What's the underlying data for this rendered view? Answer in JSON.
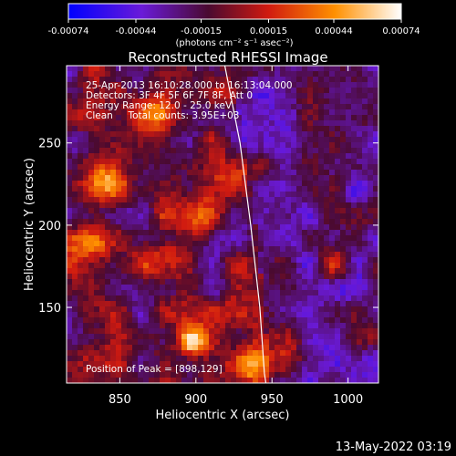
{
  "chart_data": {
    "type": "heatmap",
    "title": "Reconstructed RHESSI Image",
    "xlabel": "Heliocentric X (arcsec)",
    "ylabel": "Heliocentric Y (arcsec)",
    "xlim": [
      815,
      1020
    ],
    "ylim": [
      104,
      297
    ],
    "x_ticks": [
      850,
      900,
      950,
      1000
    ],
    "y_ticks": [
      150,
      200,
      250
    ],
    "colorbar": {
      "range": [
        -0.00074,
        0.00074
      ],
      "tick_values": [
        -0.00074,
        -0.00044,
        -0.00015,
        0.00015,
        0.00044,
        0.00074
      ],
      "tick_labels": [
        "-0.00074",
        "-0.00044",
        "-0.00015",
        "0.00015",
        "0.00044",
        "0.00074"
      ],
      "unit_label": "(photons cm⁻² s⁻¹ asec⁻²)",
      "colors": [
        "#0000ff",
        "#7a18d8",
        "#6a0f3a",
        "#d21e10",
        "#ff8a00",
        "#ffffff"
      ]
    },
    "info_lines": [
      "25-Apr-2013 16:10:28.000 to 16:13:04.000",
      "Detectors: 3F 4F 5F 6F 7F 8F, Att 0",
      "Energy Range: 12.0 - 25.0 keV",
      "Clean     Total counts: 3.95E+03"
    ],
    "peak_label": "Position of Peak = [898,129]",
    "peak": {
      "x": 898,
      "y": 129
    },
    "limb": [
      [
        919,
        297
      ],
      [
        929,
        250
      ],
      [
        936,
        200
      ],
      [
        942,
        150
      ],
      [
        945,
        110
      ],
      [
        946,
        104
      ]
    ],
    "sources": [
      {
        "x": 898,
        "y": 129,
        "strength": 1.0
      },
      {
        "x": 840,
        "y": 230,
        "strength": 0.7
      },
      {
        "x": 868,
        "y": 268,
        "strength": 0.65
      },
      {
        "x": 900,
        "y": 205,
        "strength": 0.65
      },
      {
        "x": 880,
        "y": 180,
        "strength": 0.6
      },
      {
        "x": 935,
        "y": 112,
        "strength": 0.7
      },
      {
        "x": 925,
        "y": 230,
        "strength": 0.5
      },
      {
        "x": 960,
        "y": 130,
        "strength": 0.45
      },
      {
        "x": 990,
        "y": 175,
        "strength": 0.35
      },
      {
        "x": 830,
        "y": 185,
        "strength": 0.45
      }
    ]
  },
  "footer": {
    "timestamp": "13-May-2022 03:19"
  }
}
